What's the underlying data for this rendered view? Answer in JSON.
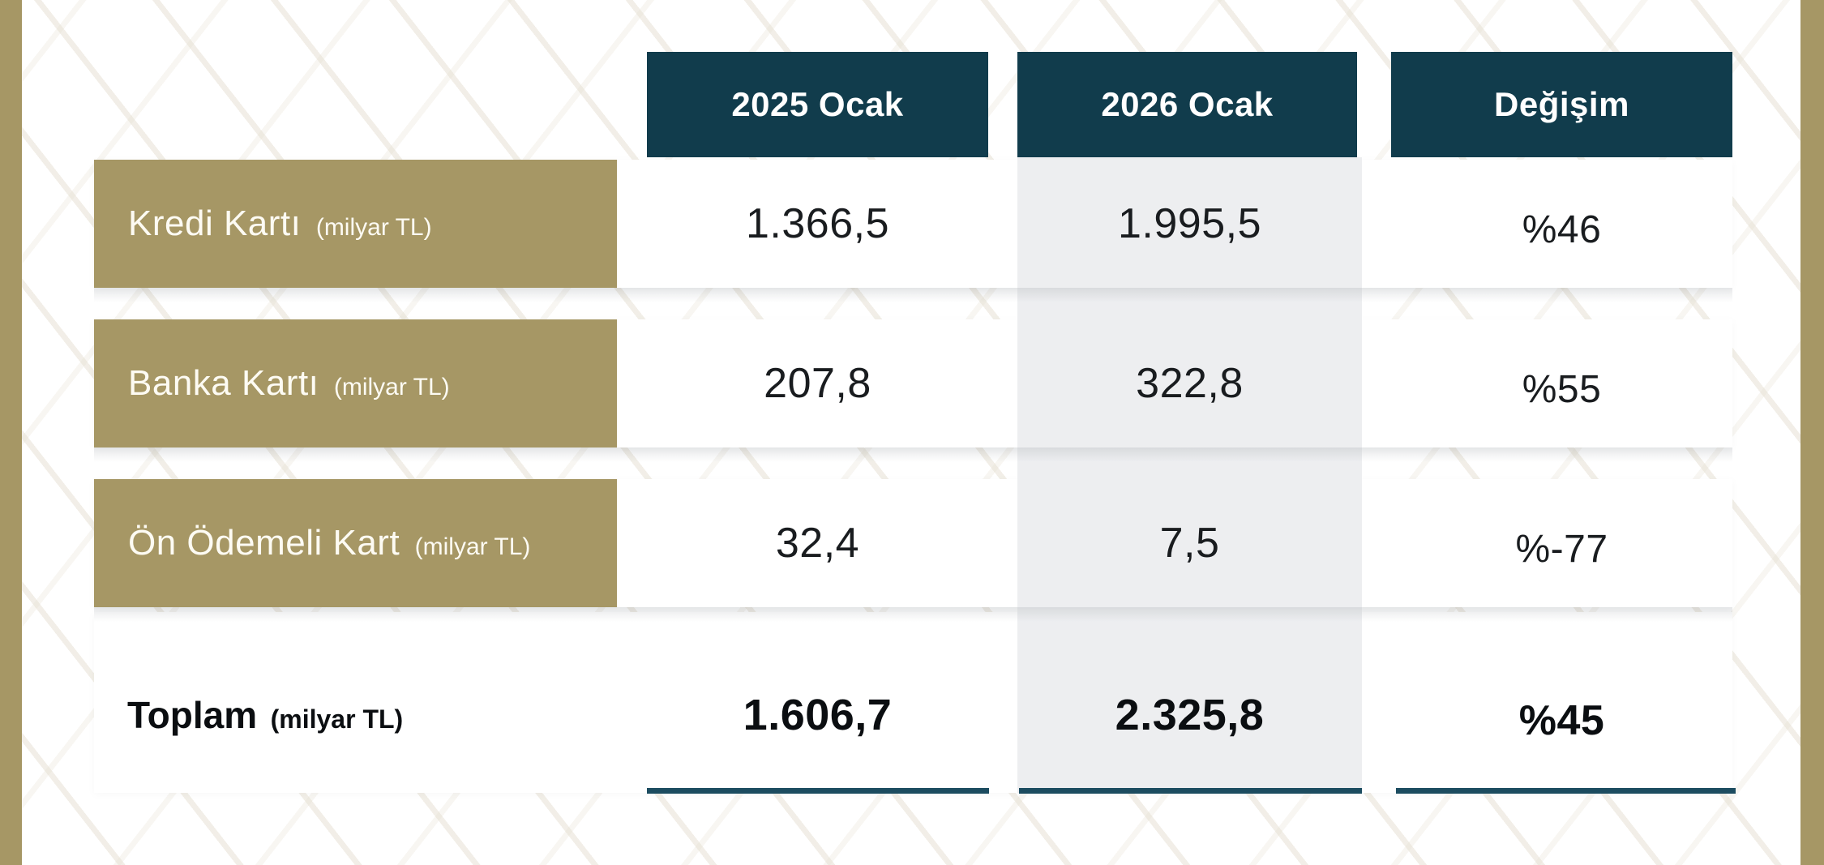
{
  "chart_data": {
    "type": "table",
    "title": "",
    "columns": [
      "2025 Ocak",
      "2026 Ocak",
      "Değişim"
    ],
    "rows": [
      {
        "label": "Kredi Kartı",
        "unit": "(milyar TL)",
        "cells": [
          "1.366,5",
          "1.995,5",
          "%46"
        ]
      },
      {
        "label": "Banka Kartı",
        "unit": "(milyar TL)",
        "cells": [
          "207,8",
          "322,8",
          "%55"
        ]
      },
      {
        "label": "Ön Ödemeli Kart",
        "unit": "(milyar TL)",
        "cells": [
          "32,4",
          "7,5",
          "%-77"
        ]
      }
    ],
    "total_row": {
      "label": "Toplam",
      "unit": "(milyar TL)",
      "cells": [
        "1.606,7",
        "2.325,8",
        "%45"
      ]
    },
    "numeric": {
      "unit": "milyar TL",
      "categories": [
        "Kredi Kartı",
        "Banka Kartı",
        "Ön Ödemeli Kart",
        "Toplam"
      ],
      "series": [
        {
          "name": "2025 Ocak",
          "values": [
            1366.5,
            207.8,
            32.4,
            1606.7
          ]
        },
        {
          "name": "2026 Ocak",
          "values": [
            1995.5,
            322.8,
            7.5,
            2325.8
          ]
        },
        {
          "name": "Değişim %",
          "values": [
            46,
            55,
            -77,
            45
          ]
        }
      ]
    },
    "layout": {
      "highlighted_column": "2026 Ocak",
      "grid": "off",
      "legend": "none"
    }
  },
  "colors": {
    "header_bg": "#113c4c",
    "row_label_bg": "#a69765",
    "side_strip": "#a69765",
    "highlight_column_bg": "#edeef0",
    "underline": "#1c4c60",
    "header_text": "#ffffff",
    "row_label_text": "#fdfbf3",
    "value_text": "#191c1f",
    "total_text": "#0b0e11",
    "background": "#ffffff",
    "pattern_stripe": "#e4ded0"
  }
}
